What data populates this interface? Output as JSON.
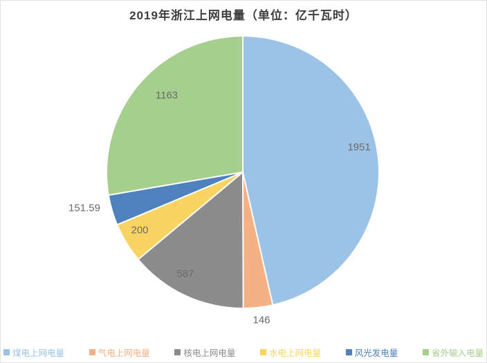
{
  "chart_data": {
    "type": "pie",
    "title": "2019年浙江上网电量（单位：亿千瓦时）",
    "unit": "亿千瓦时",
    "categories": [
      "煤电上网电量",
      "气电上网电量",
      "核电上网电量",
      "水电上网电量",
      "风光发电量",
      "省外输入电量"
    ],
    "values": [
      1951,
      146,
      587,
      200,
      151.59,
      1163
    ],
    "colors": [
      "#9CC3E5",
      "#F4B183",
      "#8C8C8C",
      "#FAD463",
      "#4E81BD",
      "#A6CE8C"
    ],
    "label_color": "#6b6b6b",
    "start_angle_deg": 0,
    "direction": "clockwise",
    "legend_position": "bottom"
  }
}
